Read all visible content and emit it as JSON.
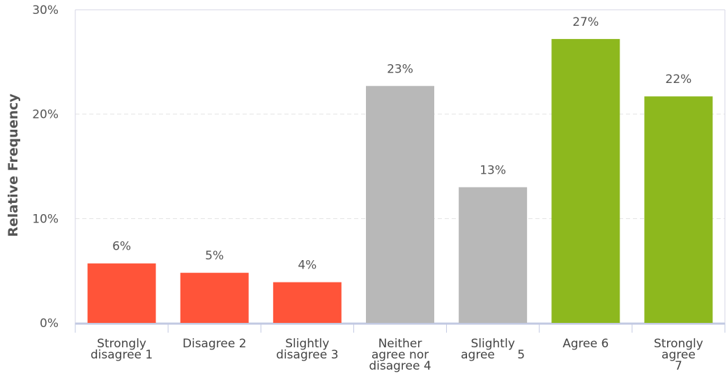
{
  "chart_data": {
    "type": "bar",
    "title": "",
    "xlabel": "",
    "ylabel": "Relative Frequency",
    "ylim": [
      0,
      30
    ],
    "yticks": [
      "0%",
      "10%",
      "20%",
      "30%"
    ],
    "grid": true,
    "categories": [
      [
        "Strongly",
        "disagree 1"
      ],
      [
        "Disagree 2"
      ],
      [
        "Slightly",
        "disagree 3"
      ],
      [
        "Neither",
        "agree nor",
        "disagree 4"
      ],
      [
        "Slightly",
        "agree      5"
      ],
      [
        "Agree 6"
      ],
      [
        "Strongly",
        "agree",
        "7"
      ]
    ],
    "values": [
      5.7,
      4.8,
      3.9,
      22.7,
      13.0,
      27.2,
      21.7
    ],
    "value_labels": [
      "6%",
      "5%",
      "4%",
      "23%",
      "13%",
      "27%",
      "22%"
    ],
    "colors": [
      "#ff5439",
      "#ff5439",
      "#ff5439",
      "#b8b8b8",
      "#b8b8b8",
      "#8db81e",
      "#8db81e"
    ]
  }
}
